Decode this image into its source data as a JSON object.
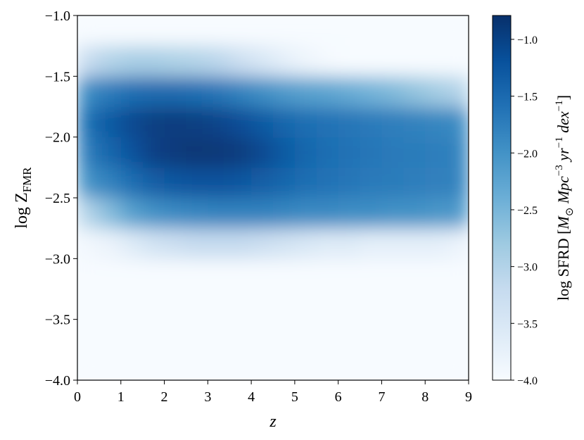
{
  "chart_data": {
    "type": "heatmap",
    "xlabel": "z",
    "ylabel": "log Z",
    "ylabel_sub": "FMR",
    "colorbar_label": [
      {
        "text": "log SFRD [",
        "italic": false,
        "shift": "none"
      },
      {
        "text": "M",
        "italic": true,
        "shift": "none"
      },
      {
        "text": "⊙",
        "italic": false,
        "shift": "sub"
      },
      {
        "text": " Mpc",
        "italic": true,
        "shift": "none"
      },
      {
        "text": "−3",
        "italic": false,
        "shift": "super"
      },
      {
        "text": " yr",
        "italic": true,
        "shift": "none"
      },
      {
        "text": "−1",
        "italic": false,
        "shift": "super"
      },
      {
        "text": " dex",
        "italic": true,
        "shift": "none"
      },
      {
        "text": "−1",
        "italic": false,
        "shift": "super"
      },
      {
        "text": "]",
        "italic": false,
        "shift": "none"
      }
    ],
    "xlim": [
      0,
      9
    ],
    "ylim": [
      -4,
      -1
    ],
    "xticks": [
      0,
      1,
      2,
      3,
      4,
      5,
      6,
      7,
      8,
      9
    ],
    "yticks": [
      {
        "value": -4,
        "label": "−4.0"
      },
      {
        "value": -3.5,
        "label": "−3.5"
      },
      {
        "value": -3,
        "label": "−3.0"
      },
      {
        "value": -2.5,
        "label": "−2.5"
      },
      {
        "value": -2,
        "label": "−2.0"
      },
      {
        "value": -1.5,
        "label": "−1.5"
      },
      {
        "value": -1,
        "label": "−1.0"
      }
    ],
    "clim": [
      -4,
      -0.79
    ],
    "cticks": [
      {
        "value": -4,
        "label": "−4.0"
      },
      {
        "value": -3.5,
        "label": "−3.5"
      },
      {
        "value": -3,
        "label": "−3.0"
      },
      {
        "value": -2.5,
        "label": "−2.5"
      },
      {
        "value": -2,
        "label": "−2.0"
      },
      {
        "value": -1.5,
        "label": "−1.5"
      },
      {
        "value": -1,
        "label": "−1.0"
      }
    ],
    "colormap": [
      "#f7fbff",
      "#deebf7",
      "#c6dbef",
      "#9ecae1",
      "#6baed6",
      "#4292c6",
      "#2171b5",
      "#08519c",
      "#08306b"
    ],
    "xbins": [
      0,
      0.5,
      1,
      1.5,
      2,
      2.5,
      3,
      3.5,
      4,
      4.5,
      5,
      5.5,
      6,
      6.5,
      7,
      7.5,
      8,
      8.5,
      9
    ],
    "ybins": [
      -4,
      -3.75,
      -3.5,
      -3.25,
      -3,
      -2.75,
      -2.5,
      -2.25,
      -2,
      -1.75,
      -1.5,
      -1.25,
      -1
    ],
    "z": [
      [
        -4,
        -4,
        -4,
        -4,
        -4,
        -4,
        -4,
        -4,
        -4,
        -4,
        -4,
        -4,
        -4,
        -4,
        -4,
        -4,
        -4,
        -4
      ],
      [
        -4,
        -4,
        -4,
        -4,
        -4,
        -4,
        -4,
        -4,
        -4,
        -4,
        -4,
        -4,
        -4,
        -4,
        -4,
        -4,
        -4,
        -4
      ],
      [
        -4,
        -4,
        -4,
        -4,
        -4,
        -4,
        -4,
        -4,
        -4,
        -4,
        -4,
        -4,
        -4,
        -4,
        -4,
        -4,
        -4,
        -4
      ],
      [
        -4,
        -4,
        -4,
        -4,
        -4,
        -4,
        -4,
        -4,
        -4,
        -4,
        -4,
        -4,
        -4,
        -4,
        -4,
        -4,
        -4,
        -4
      ],
      [
        -3.9,
        -3.8,
        -3.6,
        -3.4,
        -3.3,
        -3.2,
        -3.2,
        -3.2,
        -3.3,
        -3.4,
        -3.5,
        -3.6,
        -3.6,
        -3.7,
        -3.7,
        -3.7,
        -3.7,
        -3.8
      ],
      [
        -3.0,
        -2.6,
        -2.2,
        -2.0,
        -1.9,
        -1.85,
        -1.8,
        -1.8,
        -1.8,
        -1.85,
        -1.9,
        -1.9,
        -1.95,
        -1.95,
        -2.0,
        -2.0,
        -2.05,
        -2.1
      ],
      [
        -2.0,
        -1.8,
        -1.55,
        -1.35,
        -1.25,
        -1.2,
        -1.2,
        -1.25,
        -1.35,
        -1.45,
        -1.55,
        -1.6,
        -1.65,
        -1.7,
        -1.72,
        -1.75,
        -1.78,
        -1.8
      ],
      [
        -1.7,
        -1.45,
        -1.2,
        -1.0,
        -0.92,
        -0.88,
        -0.9,
        -0.95,
        -1.1,
        -1.3,
        -1.45,
        -1.55,
        -1.6,
        -1.65,
        -1.7,
        -1.72,
        -1.75,
        -1.8
      ],
      [
        -1.55,
        -1.3,
        -1.1,
        -0.98,
        -0.95,
        -0.98,
        -1.05,
        -1.15,
        -1.3,
        -1.45,
        -1.55,
        -1.6,
        -1.65,
        -1.7,
        -1.75,
        -1.8,
        -1.85,
        -1.9
      ],
      [
        -1.9,
        -1.7,
        -1.55,
        -1.5,
        -1.5,
        -1.55,
        -1.65,
        -1.8,
        -1.95,
        -2.1,
        -2.2,
        -2.25,
        -2.35,
        -2.45,
        -2.55,
        -2.7,
        -2.85,
        -3.0
      ],
      [
        -3.2,
        -3.0,
        -2.9,
        -2.9,
        -2.95,
        -3.0,
        -3.1,
        -3.3,
        -3.5,
        -3.7,
        -3.85,
        -3.95,
        -4,
        -4,
        -4,
        -4,
        -4,
        -4
      ],
      [
        -4,
        -4,
        -4,
        -4,
        -4,
        -4,
        -4,
        -4,
        -4,
        -4,
        -4,
        -4,
        -4,
        -4,
        -4,
        -4,
        -4,
        -4
      ]
    ]
  }
}
